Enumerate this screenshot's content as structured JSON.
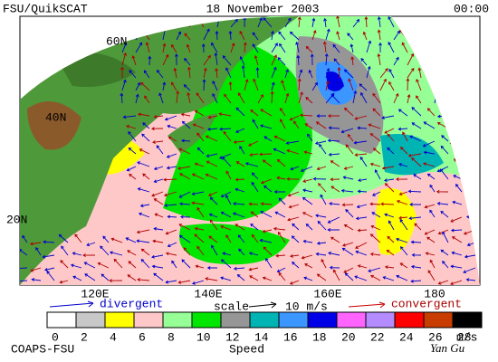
{
  "header": {
    "left": "FSU/QuikSCAT",
    "date": "18 November 2003",
    "time": "00:00"
  },
  "map": {
    "lat_labels": [
      "60N",
      "40N",
      "20N"
    ],
    "lon_labels": [
      "120E",
      "140E",
      "160E",
      "180"
    ]
  },
  "legend": {
    "divergent": "divergent",
    "scale": "scale",
    "scale_value": "10 m/s",
    "convergent": "convergent"
  },
  "colorbar": {
    "ticks": [
      0,
      2,
      4,
      6,
      8,
      10,
      12,
      14,
      16,
      18,
      20,
      22,
      24,
      26,
      28
    ],
    "colors": [
      "#ffffff",
      "#c8c8c8",
      "#ffff00",
      "#ffc8c8",
      "#96ff96",
      "#00e600",
      "#969696",
      "#00b4b4",
      "#3c96ff",
      "#0000e6",
      "#ff64ff",
      "#b48cff",
      "#ff0000",
      "#c83c00",
      "#000000"
    ],
    "unit": "m/s",
    "label": "Speed"
  },
  "footer": {
    "left": "COAPS-FSU",
    "signature": "Yan Gu"
  }
}
